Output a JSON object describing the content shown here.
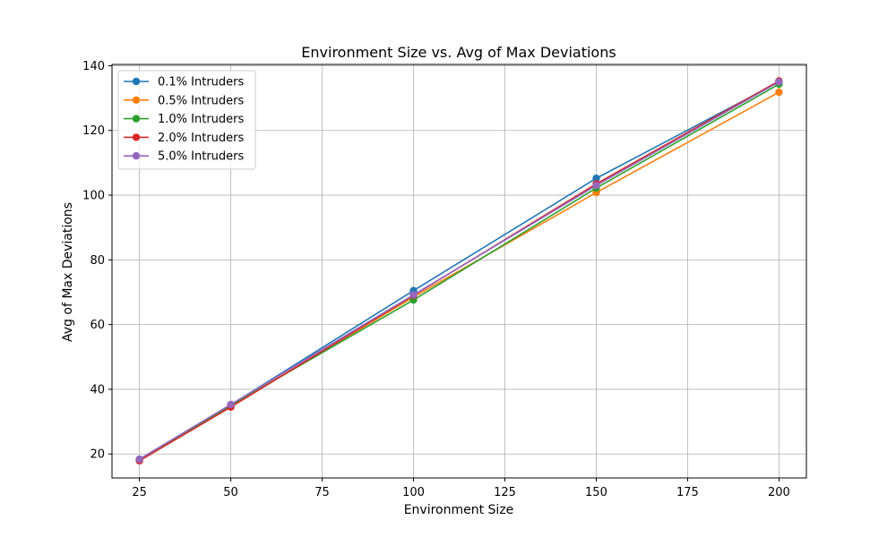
{
  "chart_data": {
    "type": "line",
    "title": "Environment Size vs. Avg of Max Deviations",
    "xlabel": "Environment Size",
    "ylabel": "Avg of Max Deviations",
    "xlim": [
      17.5,
      207.5
    ],
    "ylim": [
      12.6,
      140.4
    ],
    "xticks": [
      25,
      50,
      75,
      100,
      125,
      150,
      175,
      200
    ],
    "yticks": [
      20,
      40,
      60,
      80,
      100,
      120,
      140
    ],
    "grid": true,
    "legend_position": "top-left",
    "x": [
      25,
      50,
      100,
      150,
      200
    ],
    "series": [
      {
        "name": "0.1% Intruders",
        "color": "#1f77b4",
        "values": [
          18.2,
          35.2,
          70.5,
          105.2,
          135.0
        ]
      },
      {
        "name": "0.5% Intruders",
        "color": "#ff7f0e",
        "values": [
          18.0,
          34.8,
          68.5,
          100.8,
          131.8
        ]
      },
      {
        "name": "1.0% Intruders",
        "color": "#2ca02c",
        "values": [
          18.1,
          35.0,
          67.6,
          102.2,
          134.3
        ]
      },
      {
        "name": "2.0% Intruders",
        "color": "#d62728",
        "values": [
          17.9,
          34.5,
          69.0,
          103.5,
          135.3
        ]
      },
      {
        "name": "5.0% Intruders",
        "color": "#9467bd",
        "values": [
          18.4,
          35.3,
          69.2,
          103.0,
          135.0
        ]
      }
    ]
  }
}
